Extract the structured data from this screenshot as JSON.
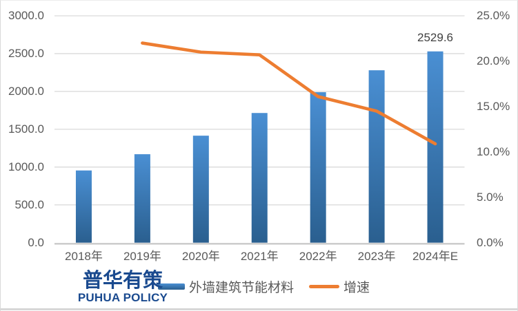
{
  "chart_data": {
    "type": "combo",
    "subtype": [
      "bar",
      "line"
    ],
    "title": "",
    "categories": [
      "2018年",
      "2019年",
      "2020年",
      "2021年",
      "2022年",
      "2023年",
      "2024年E"
    ],
    "series": [
      {
        "name": "外墙建筑节能材料",
        "type": "bar",
        "axis": "left",
        "values": [
          955,
          1170,
          1415,
          1715,
          1990,
          2280,
          2529.6
        ]
      },
      {
        "name": "增速",
        "type": "line",
        "axis": "right",
        "unit": "%",
        "values": [
          null,
          22.0,
          21.0,
          20.7,
          16.1,
          14.5,
          10.9
        ]
      }
    ],
    "left_axis": {
      "min": 0,
      "max": 3000,
      "tick_values": [
        0,
        500,
        1000,
        1500,
        2000,
        2500,
        3000
      ],
      "tick_labels": [
        "0.0",
        "500.0",
        "1000.0",
        "1500.0",
        "2000.0",
        "2500.0",
        "3000.0"
      ]
    },
    "right_axis": {
      "min": 0,
      "max": 25,
      "tick_values": [
        0,
        5,
        10,
        15,
        20,
        25
      ],
      "tick_labels": [
        "0.0%",
        "5.0%",
        "10.0%",
        "15.0%",
        "20.0%",
        "25.0%"
      ]
    },
    "data_labels": [
      {
        "series": "外墙建筑节能材料",
        "category": "2024年E",
        "text": "2529.6"
      }
    ],
    "legend": {
      "position": "bottom",
      "items": [
        {
          "label": "外墙建筑节能材料",
          "marker": "bar"
        },
        {
          "label": "增速",
          "marker": "line"
        }
      ]
    },
    "grid": "horizontal",
    "colors": {
      "bar_top": "#4a8fd3",
      "bar_bottom": "#2a5f8f",
      "line": "#ed7d31",
      "gridline": "#d9d9d9",
      "axis_line": "#c9c9c9",
      "tick_text": "#595959",
      "data_label_text": "#3f3f3f"
    }
  },
  "logo": {
    "cn": "普华有策",
    "en": "PUHUA POLICY",
    "color": "#1a4a8f"
  }
}
